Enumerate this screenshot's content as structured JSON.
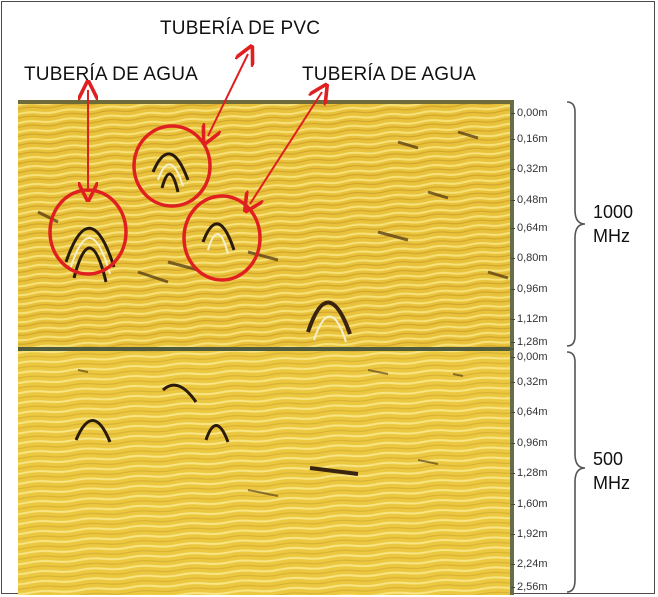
{
  "annotations": {
    "pvc_label": "TUBERÍA DE PVC",
    "water_left_label": "TUBERÍA DE AGUA",
    "water_right_label": "TUBERÍA DE AGUA"
  },
  "top_panel": {
    "frequency_value": "1000",
    "frequency_unit": "MHz",
    "depth_ticks": [
      "0,00m",
      "0,16m",
      "0,32m",
      "0,48m",
      "0,64m",
      "0,80m",
      "0,96m",
      "1,12m",
      "1,28m"
    ]
  },
  "bottom_panel": {
    "frequency_value": "500",
    "frequency_unit": "MHz",
    "depth_ticks": [
      "0,00m",
      "0,32m",
      "0,64m",
      "0,96m",
      "1,28m",
      "1,60m",
      "1,92m",
      "2,24m",
      "2,56m"
    ]
  },
  "colors": {
    "background_yellow": "#e9c23c",
    "highlight_circle": "#e02020",
    "arrow": "#e02020"
  }
}
